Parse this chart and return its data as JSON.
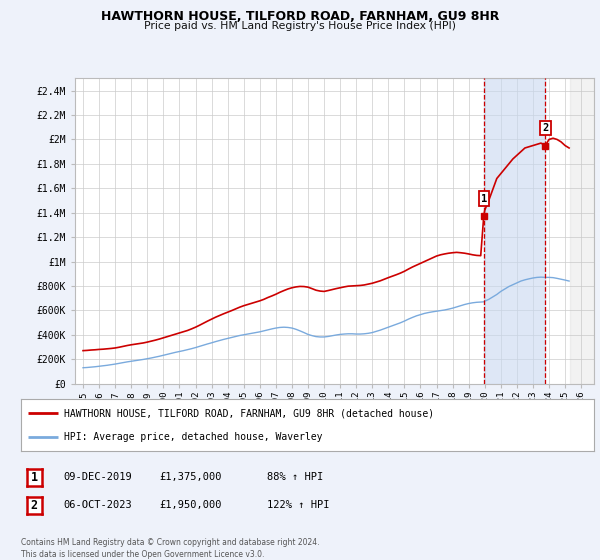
{
  "title": "HAWTHORN HOUSE, TILFORD ROAD, FARNHAM, GU9 8HR",
  "subtitle": "Price paid vs. HM Land Registry's House Price Index (HPI)",
  "background_color": "#eef2fa",
  "plot_background": "#ffffff",
  "ylim": [
    0,
    2500000
  ],
  "yticks": [
    0,
    200000,
    400000,
    600000,
    800000,
    1000000,
    1200000,
    1400000,
    1600000,
    1800000,
    2000000,
    2200000,
    2400000
  ],
  "ytick_labels": [
    "£0",
    "£200K",
    "£400K",
    "£600K",
    "£800K",
    "£1M",
    "£1.2M",
    "£1.4M",
    "£1.6M",
    "£1.8M",
    "£2M",
    "£2.2M",
    "£2.4M"
  ],
  "xlim_start": 1994.5,
  "xlim_end": 2026.8,
  "red_line_color": "#cc0000",
  "blue_line_color": "#7aaadd",
  "grid_color": "#cccccc",
  "marker1_x": 2019.94,
  "marker1_y": 1375000,
  "marker2_x": 2023.77,
  "marker2_y": 1950000,
  "legend_label_red": "HAWTHORN HOUSE, TILFORD ROAD, FARNHAM, GU9 8HR (detached house)",
  "legend_label_blue": "HPI: Average price, detached house, Waverley",
  "annotation1_date": "09-DEC-2019",
  "annotation1_price": "£1,375,000",
  "annotation1_hpi": "88% ↑ HPI",
  "annotation2_date": "06-OCT-2023",
  "annotation2_price": "£1,950,000",
  "annotation2_hpi": "122% ↑ HPI",
  "footer": "Contains HM Land Registry data © Crown copyright and database right 2024.\nThis data is licensed under the Open Government Licence v3.0.",
  "x_years": [
    1995,
    1995.25,
    1995.5,
    1995.75,
    1996,
    1996.25,
    1996.5,
    1996.75,
    1997,
    1997.25,
    1997.5,
    1997.75,
    1998,
    1998.25,
    1998.5,
    1998.75,
    1999,
    1999.25,
    1999.5,
    1999.75,
    2000,
    2000.25,
    2000.5,
    2000.75,
    2001,
    2001.25,
    2001.5,
    2001.75,
    2002,
    2002.25,
    2002.5,
    2002.75,
    2003,
    2003.25,
    2003.5,
    2003.75,
    2004,
    2004.25,
    2004.5,
    2004.75,
    2005,
    2005.25,
    2005.5,
    2005.75,
    2006,
    2006.25,
    2006.5,
    2006.75,
    2007,
    2007.25,
    2007.5,
    2007.75,
    2008,
    2008.25,
    2008.5,
    2008.75,
    2009,
    2009.25,
    2009.5,
    2009.75,
    2010,
    2010.25,
    2010.5,
    2010.75,
    2011,
    2011.25,
    2011.5,
    2011.75,
    2012,
    2012.25,
    2012.5,
    2012.75,
    2013,
    2013.25,
    2013.5,
    2013.75,
    2014,
    2014.25,
    2014.5,
    2014.75,
    2015,
    2015.25,
    2015.5,
    2015.75,
    2016,
    2016.25,
    2016.5,
    2016.75,
    2017,
    2017.25,
    2017.5,
    2017.75,
    2018,
    2018.25,
    2018.5,
    2018.75,
    2019,
    2019.25,
    2019.5,
    2019.75,
    2019.94,
    2020,
    2020.25,
    2020.5,
    2020.75,
    2021,
    2021.25,
    2021.5,
    2021.75,
    2022,
    2022.25,
    2022.5,
    2022.75,
    2023,
    2023.25,
    2023.5,
    2023.77,
    2024,
    2024.25,
    2024.5,
    2024.75,
    2025,
    2025.25
  ],
  "red_values": [
    270000,
    272000,
    275000,
    277000,
    280000,
    282000,
    285000,
    288000,
    292000,
    298000,
    305000,
    312000,
    318000,
    323000,
    328000,
    333000,
    340000,
    348000,
    356000,
    365000,
    375000,
    385000,
    395000,
    405000,
    415000,
    425000,
    435000,
    448000,
    462000,
    478000,
    495000,
    512000,
    528000,
    544000,
    558000,
    572000,
    585000,
    598000,
    612000,
    626000,
    638000,
    648000,
    658000,
    668000,
    678000,
    690000,
    705000,
    718000,
    732000,
    748000,
    762000,
    775000,
    785000,
    792000,
    796000,
    795000,
    790000,
    778000,
    765000,
    758000,
    755000,
    762000,
    770000,
    778000,
    785000,
    792000,
    798000,
    800000,
    802000,
    804000,
    808000,
    815000,
    822000,
    832000,
    842000,
    855000,
    868000,
    880000,
    892000,
    905000,
    920000,
    938000,
    955000,
    970000,
    985000,
    1000000,
    1015000,
    1030000,
    1045000,
    1055000,
    1062000,
    1068000,
    1072000,
    1075000,
    1072000,
    1068000,
    1062000,
    1055000,
    1050000,
    1048000,
    1375000,
    1420000,
    1500000,
    1590000,
    1680000,
    1720000,
    1760000,
    1800000,
    1840000,
    1870000,
    1900000,
    1930000,
    1940000,
    1950000,
    1960000,
    1970000,
    1950000,
    2000000,
    2010000,
    2000000,
    1980000,
    1950000,
    1930000
  ],
  "blue_values": [
    130000,
    132000,
    135000,
    138000,
    142000,
    146000,
    150000,
    155000,
    160000,
    166000,
    172000,
    178000,
    183000,
    188000,
    193000,
    198000,
    204000,
    210000,
    217000,
    224000,
    232000,
    240000,
    248000,
    256000,
    263000,
    270000,
    278000,
    286000,
    295000,
    305000,
    315000,
    325000,
    334000,
    344000,
    353000,
    362000,
    370000,
    378000,
    386000,
    394000,
    400000,
    406000,
    412000,
    418000,
    424000,
    432000,
    440000,
    448000,
    455000,
    460000,
    462000,
    460000,
    455000,
    445000,
    432000,
    418000,
    403000,
    393000,
    385000,
    382000,
    382000,
    386000,
    392000,
    398000,
    403000,
    406000,
    408000,
    408000,
    406000,
    406000,
    408000,
    412000,
    418000,
    428000,
    438000,
    450000,
    462000,
    474000,
    486000,
    498000,
    512000,
    528000,
    542000,
    555000,
    565000,
    575000,
    582000,
    588000,
    593000,
    598000,
    603000,
    610000,
    618000,
    628000,
    638000,
    648000,
    656000,
    662000,
    666000,
    668000,
    670000,
    675000,
    690000,
    710000,
    730000,
    755000,
    775000,
    795000,
    810000,
    825000,
    840000,
    850000,
    858000,
    865000,
    870000,
    872000,
    870000,
    870000,
    868000,
    862000,
    855000,
    848000,
    840000
  ]
}
